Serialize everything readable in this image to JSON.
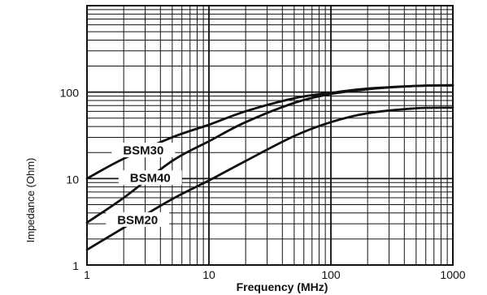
{
  "chart_data": {
    "type": "line",
    "scale": "log-log",
    "title": "",
    "xlabel": "Frequency (MHz)",
    "ylabel": "Impedance (Ohm)",
    "xlim": [
      1,
      1000
    ],
    "ylim": [
      1,
      1000
    ],
    "grid": true,
    "x_ticks": [
      {
        "value": 1,
        "label": "1"
      },
      {
        "value": 10,
        "label": "10"
      },
      {
        "value": 100,
        "label": "100"
      },
      {
        "value": 1000,
        "label": "1000"
      }
    ],
    "y_ticks": [
      {
        "value": 1,
        "label": "1"
      },
      {
        "value": 10,
        "label": "10"
      },
      {
        "value": 100,
        "label": "100"
      }
    ],
    "series": [
      {
        "name": "BSM30",
        "x": [
          1,
          2,
          5,
          10,
          20,
          50,
          100,
          200,
          500,
          1000
        ],
        "y": [
          10,
          17,
          30,
          42,
          60,
          85,
          98,
          110,
          118,
          120
        ]
      },
      {
        "name": "BSM40",
        "x": [
          1,
          2,
          5,
          10,
          20,
          50,
          100,
          200,
          500,
          1000
        ],
        "y": [
          3.1,
          6,
          16,
          27,
          45,
          75,
          95,
          108,
          118,
          120
        ]
      },
      {
        "name": "BSM20",
        "x": [
          1,
          2,
          5,
          10,
          20,
          50,
          100,
          200,
          500,
          1000
        ],
        "y": [
          1.5,
          2.7,
          5.8,
          9.5,
          16,
          31,
          45,
          57,
          65,
          66
        ]
      }
    ]
  }
}
